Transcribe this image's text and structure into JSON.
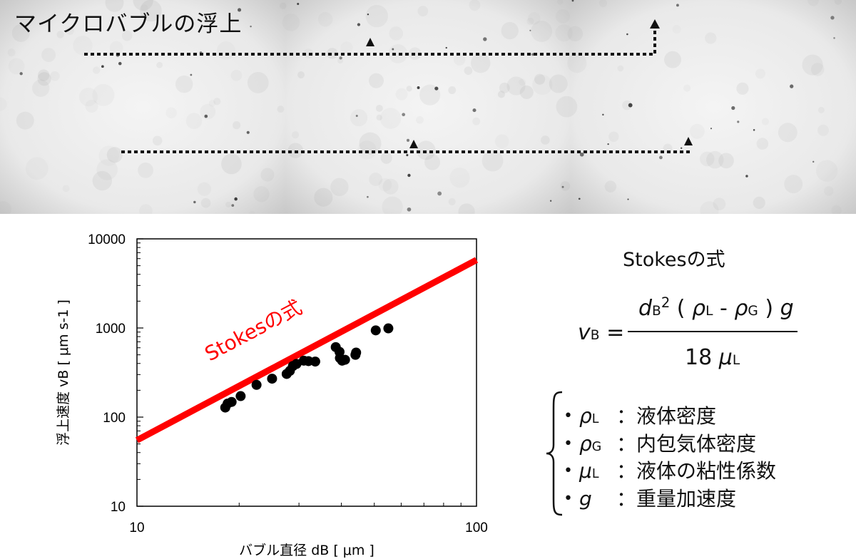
{
  "photo_panel": {
    "title": "マイクロバブルの浮上"
  },
  "chart_data": {
    "type": "scatter",
    "xlabel": "バブル直径 dB [ μm ]",
    "ylabel": "浮上速度 vB [ μm s-1 ]",
    "x_scale": "log",
    "y_scale": "log",
    "xlim": [
      10,
      100
    ],
    "ylim": [
      10,
      10000
    ],
    "x_ticks": [
      "10",
      "100"
    ],
    "y_ticks": [
      "10",
      "100",
      "1000",
      "10000"
    ],
    "grid": false,
    "series": [
      {
        "type": "scatter",
        "color": "#000000",
        "points": [
          [
            18.2,
            128
          ],
          [
            18.5,
            142
          ],
          [
            19.0,
            148
          ],
          [
            20.2,
            172
          ],
          [
            22.5,
            230
          ],
          [
            25.0,
            270
          ],
          [
            27.6,
            305
          ],
          [
            28.2,
            330
          ],
          [
            28.8,
            375
          ],
          [
            29.5,
            395
          ],
          [
            31.0,
            430
          ],
          [
            32.0,
            425
          ],
          [
            33.5,
            420
          ],
          [
            38.5,
            610
          ],
          [
            39.5,
            540
          ],
          [
            39.6,
            460
          ],
          [
            40.2,
            430
          ],
          [
            41.0,
            440
          ],
          [
            44.0,
            500
          ],
          [
            44.2,
            530
          ],
          [
            50.5,
            940
          ],
          [
            55.0,
            990
          ]
        ]
      },
      {
        "name": "Stokesの式",
        "type": "line",
        "color": "#ff0000",
        "points": [
          [
            10,
            55
          ],
          [
            100,
            5800
          ]
        ]
      }
    ]
  },
  "formula": {
    "title": "Stokesの式",
    "lhs_var": "v",
    "lhs_sub": "B",
    "equals": "=",
    "num_d": "d",
    "num_d_sub": "B",
    "num_sup": "2",
    "num_open": " ( ",
    "num_rho1": "ρ",
    "num_rho1_sub": "L",
    "num_minus": " - ",
    "num_rho2": "ρ",
    "num_rho2_sub": "G",
    "num_close": " ) ",
    "num_g": "g",
    "den_num": "18 ",
    "den_mu": "μ",
    "den_mu_sub": "L"
  },
  "legend": [
    {
      "sym": "ρ",
      "sub": "L",
      "colon": "：",
      "desc": "液体密度"
    },
    {
      "sym": "ρ",
      "sub": "G",
      "colon": "：",
      "desc": "内包気体密度"
    },
    {
      "sym": "μ",
      "sub": "L",
      "colon": "：",
      "desc": "液体の粘性係数"
    },
    {
      "sym": "g",
      "sub": "",
      "colon": "：",
      "desc": "重量加速度"
    }
  ]
}
